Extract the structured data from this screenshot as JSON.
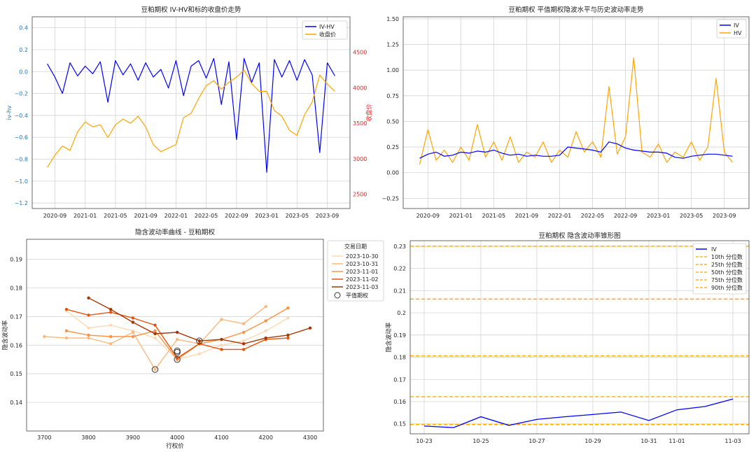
{
  "chart_data": [
    {
      "type": "line",
      "title": "豆粕期权 IV-HV和标的收盘价走势",
      "ylabel": "iv-hv",
      "y2label": "收盘价",
      "ylim": [
        -1.25,
        0.5
      ],
      "y2lim": [
        2300,
        5000
      ],
      "yticks": [
        -1.2,
        -1.0,
        -0.8,
        -0.6,
        -0.4,
        -0.2,
        0.0,
        0.2,
        0.4
      ],
      "ytick_labels": [
        "−1.2",
        "−1.0",
        "−0.8",
        "−0.6",
        "−0.4",
        "−0.2",
        "0.0",
        "0.2",
        "0.4"
      ],
      "y2ticks": [
        2500,
        3000,
        3500,
        4000,
        4500
      ],
      "xticks": [
        "2020-09",
        "2021-01",
        "2021-05",
        "2021-09",
        "2022-01",
        "2022-05",
        "2022-09",
        "2023-01",
        "2023-05",
        "2023-09"
      ],
      "legend": "top-right",
      "grid": true,
      "series": [
        {
          "name": "IV-HV",
          "color": "#0000ff",
          "axis": "left",
          "x": [
            "2020-08",
            "2020-09",
            "2020-10",
            "2020-11",
            "2020-12",
            "2021-01",
            "2021-02",
            "2021-03",
            "2021-04",
            "2021-05",
            "2021-06",
            "2021-07",
            "2021-08",
            "2021-09",
            "2021-10",
            "2021-11",
            "2021-12",
            "2022-01",
            "2022-02",
            "2022-03",
            "2022-04",
            "2022-05",
            "2022-06",
            "2022-07",
            "2022-08",
            "2022-09",
            "2022-10",
            "2022-11",
            "2022-12",
            "2023-01",
            "2023-02",
            "2023-03",
            "2023-04",
            "2023-05",
            "2023-06",
            "2023-07",
            "2023-08",
            "2023-09",
            "2023-10"
          ],
          "y": [
            0.07,
            -0.05,
            -0.2,
            0.08,
            -0.04,
            0.05,
            -0.02,
            0.09,
            -0.28,
            0.1,
            -0.03,
            0.07,
            -0.08,
            0.08,
            -0.05,
            0.02,
            -0.15,
            0.1,
            -0.22,
            0.05,
            0.1,
            -0.06,
            0.12,
            -0.3,
            0.09,
            -0.62,
            0.12,
            -0.1,
            0.08,
            -0.92,
            0.11,
            -0.05,
            0.1,
            -0.08,
            0.11,
            -0.03,
            -0.74,
            0.08,
            -0.04
          ]
        },
        {
          "name": "收盘价",
          "color": "#ffa500",
          "axis": "right",
          "x": [
            "2020-08",
            "2020-09",
            "2020-10",
            "2020-11",
            "2020-12",
            "2021-01",
            "2021-02",
            "2021-03",
            "2021-04",
            "2021-05",
            "2021-06",
            "2021-07",
            "2021-08",
            "2021-09",
            "2021-10",
            "2021-11",
            "2021-12",
            "2022-01",
            "2022-02",
            "2022-03",
            "2022-04",
            "2022-05",
            "2022-06",
            "2022-07",
            "2022-08",
            "2022-09",
            "2022-10",
            "2022-11",
            "2022-12",
            "2023-01",
            "2023-02",
            "2023-03",
            "2023-04",
            "2023-05",
            "2023-06",
            "2023-07",
            "2023-08",
            "2023-09",
            "2023-10"
          ],
          "y": [
            2880,
            3050,
            3180,
            3120,
            3380,
            3520,
            3450,
            3480,
            3300,
            3480,
            3560,
            3500,
            3600,
            3450,
            3200,
            3100,
            3150,
            3200,
            3580,
            3640,
            3850,
            4030,
            4100,
            3980,
            4080,
            4150,
            4250,
            4060,
            3950,
            3950,
            3680,
            3600,
            3400,
            3330,
            3620,
            3800,
            4180,
            4050,
            3950
          ]
        }
      ]
    },
    {
      "type": "line",
      "title": "豆粕期权 平值期权隐波水平与历史波动率走势",
      "ylim": [
        -0.35,
        1.52
      ],
      "yticks": [
        -0.25,
        0.0,
        0.25,
        0.5,
        0.75,
        1.0,
        1.25,
        1.5
      ],
      "ytick_labels": [
        "−0.25",
        "0.00",
        "0.25",
        "0.50",
        "0.75",
        "1.00",
        "1.25",
        "1.50"
      ],
      "xticks": [
        "2020-09",
        "2021-01",
        "2021-05",
        "2021-09",
        "2022-01",
        "2022-05",
        "2022-09",
        "2023-01",
        "2023-05",
        "2023-09"
      ],
      "legend": "top-right",
      "grid": true,
      "series": [
        {
          "name": "IV",
          "color": "#0000ff",
          "x": [
            "2020-08",
            "2020-09",
            "2020-10",
            "2020-11",
            "2020-12",
            "2021-01",
            "2021-02",
            "2021-03",
            "2021-04",
            "2021-05",
            "2021-06",
            "2021-07",
            "2021-08",
            "2021-09",
            "2021-10",
            "2021-11",
            "2021-12",
            "2022-01",
            "2022-02",
            "2022-03",
            "2022-04",
            "2022-05",
            "2022-06",
            "2022-07",
            "2022-08",
            "2022-09",
            "2022-10",
            "2022-11",
            "2022-12",
            "2023-01",
            "2023-02",
            "2023-03",
            "2023-04",
            "2023-05",
            "2023-06",
            "2023-07",
            "2023-08",
            "2023-09",
            "2023-10"
          ],
          "y": [
            0.14,
            0.18,
            0.2,
            0.16,
            0.17,
            0.2,
            0.19,
            0.21,
            0.2,
            0.22,
            0.19,
            0.17,
            0.18,
            0.16,
            0.17,
            0.16,
            0.16,
            0.17,
            0.25,
            0.24,
            0.23,
            0.22,
            0.2,
            0.3,
            0.28,
            0.24,
            0.22,
            0.21,
            0.2,
            0.2,
            0.19,
            0.15,
            0.14,
            0.16,
            0.17,
            0.18,
            0.18,
            0.17,
            0.16
          ]
        },
        {
          "name": "HV",
          "color": "#ffa500",
          "x": [
            "2020-08",
            "2020-09",
            "2020-10",
            "2020-11",
            "2020-12",
            "2021-01",
            "2021-02",
            "2021-03",
            "2021-04",
            "2021-05",
            "2021-06",
            "2021-07",
            "2021-08",
            "2021-09",
            "2021-10",
            "2021-11",
            "2021-12",
            "2022-01",
            "2022-02",
            "2022-03",
            "2022-04",
            "2022-05",
            "2022-06",
            "2022-07",
            "2022-08",
            "2022-09",
            "2022-10",
            "2022-11",
            "2022-12",
            "2023-01",
            "2023-02",
            "2023-03",
            "2023-04",
            "2023-05",
            "2023-06",
            "2023-07",
            "2023-08",
            "2023-09",
            "2023-10"
          ],
          "y": [
            0.08,
            0.42,
            0.12,
            0.22,
            0.1,
            0.25,
            0.12,
            0.47,
            0.15,
            0.3,
            0.12,
            0.35,
            0.1,
            0.2,
            0.15,
            0.3,
            0.1,
            0.22,
            0.15,
            0.4,
            0.2,
            0.3,
            0.15,
            0.84,
            0.18,
            0.35,
            1.12,
            0.2,
            0.15,
            0.28,
            0.1,
            0.2,
            0.15,
            0.3,
            0.12,
            0.25,
            0.92,
            0.2,
            0.1
          ]
        }
      ]
    },
    {
      "type": "line",
      "title": "隐含波动率曲线 - 豆粕期权",
      "xlabel": "行权价",
      "ylabel": "隐含波动率",
      "xlim": [
        3660,
        4330
      ],
      "ylim": [
        0.13,
        0.197
      ],
      "xticks": [
        3700,
        3800,
        3900,
        4000,
        4100,
        4200,
        4300
      ],
      "yticks": [
        0.14,
        0.15,
        0.16,
        0.17,
        0.18,
        0.19
      ],
      "legend_title": "交易日期",
      "legend": "outside-right",
      "grid": true,
      "series": [
        {
          "name": "2023-10-30",
          "color": "#fdd9b3",
          "x": [
            3750,
            3800,
            3850,
            3900,
            3950,
            4000,
            4050,
            4100,
            4150,
            4200,
            4250
          ],
          "y": [
            0.172,
            0.166,
            0.167,
            0.165,
            0.1625,
            0.155,
            0.157,
            0.16,
            0.1615,
            0.165,
            0.1695
          ]
        },
        {
          "name": "2023-10-31",
          "color": "#fdb97d",
          "x": [
            3700,
            3750,
            3800,
            3850,
            3900,
            3950,
            4000,
            4050,
            4100,
            4150,
            4200
          ],
          "y": [
            0.163,
            0.1625,
            0.1625,
            0.1605,
            0.1645,
            0.1515,
            0.162,
            0.1605,
            0.169,
            0.1675,
            0.1735
          ]
        },
        {
          "name": "2023-11-01",
          "color": "#fd9243",
          "x": [
            3750,
            3800,
            3850,
            3900,
            3950,
            4000,
            4050,
            4100,
            4150,
            4200,
            4250
          ],
          "y": [
            0.165,
            0.1635,
            0.163,
            0.163,
            0.165,
            0.155,
            0.1605,
            0.162,
            0.1645,
            0.1685,
            0.173
          ]
        },
        {
          "name": "2023-11-02",
          "color": "#e6550d",
          "x": [
            3750,
            3800,
            3850,
            3900,
            3950,
            4000,
            4050,
            4100,
            4150,
            4200,
            4250
          ],
          "y": [
            0.1725,
            0.1705,
            0.1715,
            0.1695,
            0.167,
            0.1555,
            0.1605,
            0.1585,
            0.1585,
            0.162,
            0.1625
          ]
        },
        {
          "name": "2023-11-03",
          "color": "#a63603",
          "x": [
            3800,
            3850,
            3900,
            3950,
            4000,
            4050,
            4100,
            4150,
            4200,
            4250,
            4300
          ],
          "y": [
            0.1765,
            0.1725,
            0.168,
            0.164,
            0.1645,
            0.1615,
            0.162,
            0.1605,
            0.1625,
            0.1635,
            0.166
          ]
        },
        {
          "name": "平值期权",
          "marker": "circle",
          "x": [
            3950,
            4000,
            4000,
            4000,
            4050
          ],
          "y": [
            0.1515,
            0.155,
            0.1575,
            0.158,
            0.1615
          ]
        }
      ]
    },
    {
      "type": "line",
      "title": "豆粕期权 隐含波动率锥形图",
      "ylabel": "隐含波动率",
      "ylim": [
        0.1455,
        0.2325
      ],
      "yticks": [
        0.15,
        0.16,
        0.17,
        0.18,
        0.19,
        0.2,
        0.21,
        0.22,
        0.23
      ],
      "xticks": [
        "10-23",
        "10-25",
        "10-27",
        "10-29",
        "10-31",
        "11-01",
        "11-03"
      ],
      "legend": "top-right",
      "grid": true,
      "series": [
        {
          "name": "IV",
          "color": "#0000ff",
          "x": [
            "10-23",
            "10-24",
            "10-25",
            "10-26",
            "10-27",
            "10-28",
            "10-29",
            "10-30",
            "10-31",
            "11-01",
            "11-02",
            "11-03"
          ],
          "y": [
            0.149,
            0.1483,
            0.1532,
            0.1493,
            0.152,
            0.1532,
            0.1542,
            0.1553,
            0.1515,
            0.1563,
            0.1578,
            0.1612
          ]
        }
      ],
      "hlines": [
        {
          "name": "10th 分位数",
          "value": 0.1497
        },
        {
          "name": "25th 分位数",
          "value": 0.1622
        },
        {
          "name": "50th 分位数",
          "value": 0.1806
        },
        {
          "name": "75th 分位数",
          "value": 0.2062
        },
        {
          "name": "90th 分位数",
          "value": 0.23
        }
      ],
      "hline_color": "#ffa500"
    }
  ]
}
